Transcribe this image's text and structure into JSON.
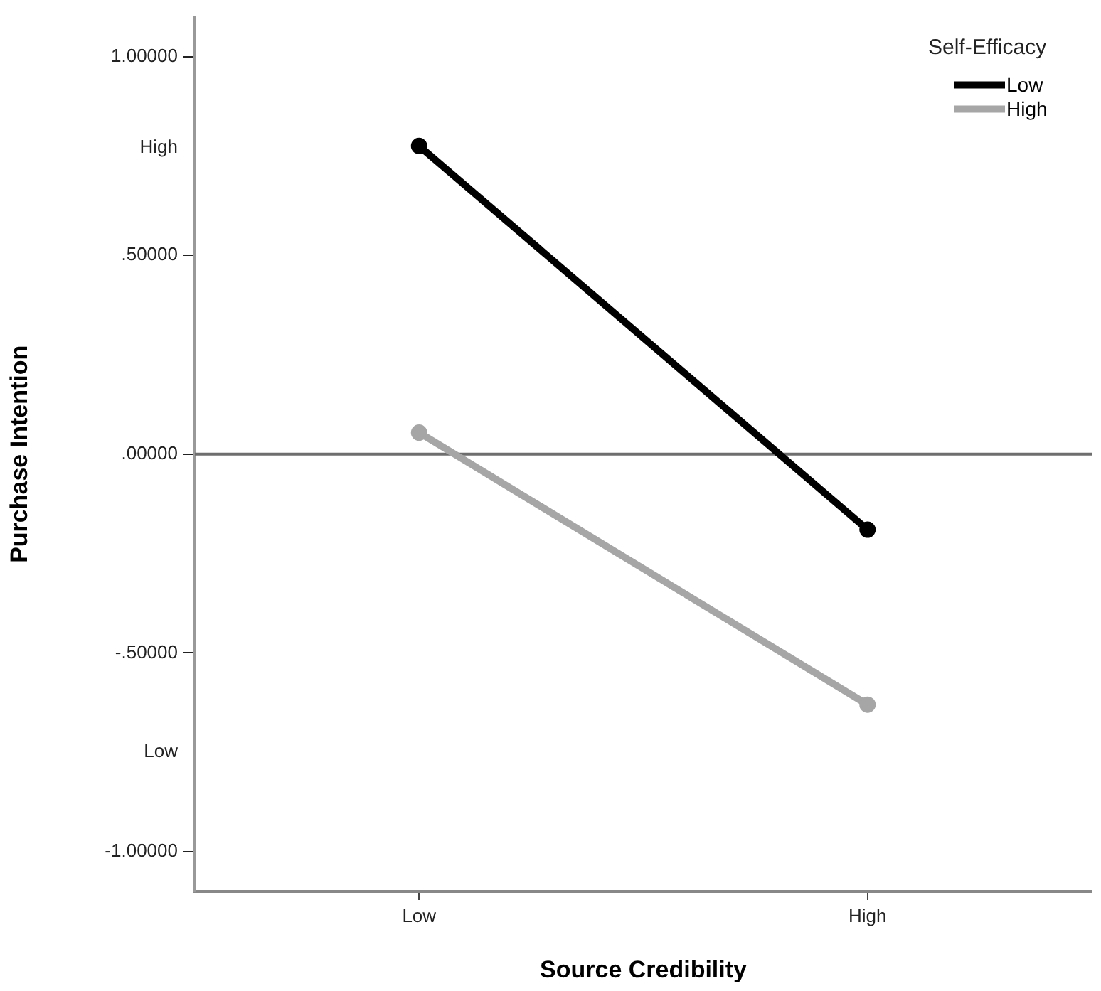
{
  "chart_data": {
    "type": "line",
    "xlabel": "Source Credibility",
    "ylabel": "Purchase Intention",
    "legend_title": "Self-Efficacy",
    "categories": [
      "Low",
      "High"
    ],
    "series": [
      {
        "name": "Low",
        "color": "#000000",
        "values": [
          0.775,
          -0.19
        ]
      },
      {
        "name": "High",
        "color": "#a6a6a6",
        "values": [
          0.054,
          -0.63
        ]
      }
    ],
    "ylim": [
      -1.1,
      1.1
    ],
    "yticks": [
      {
        "value": -1,
        "label": "-1.00000"
      },
      {
        "value": -0.75,
        "label": "Low"
      },
      {
        "value": -0.5,
        "label": "-.50000"
      },
      {
        "value": 0,
        "label": ".00000"
      },
      {
        "value": 0.5,
        "label": ".50000"
      },
      {
        "value": 0.77,
        "label": "High"
      },
      {
        "value": 1,
        "label": "1.00000"
      }
    ],
    "ref_lines": [
      {
        "axis": "y",
        "value": 0,
        "color": "#6e6e6e"
      }
    ],
    "legend": "top right",
    "marker": "circle",
    "line_style": "solid",
    "grid": false
  }
}
